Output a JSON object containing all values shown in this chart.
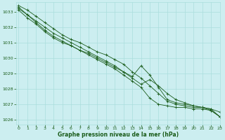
{
  "title": "Graphe pression niveau de la mer (hPa)",
  "bg_color": "#cceef0",
  "grid_color": "#aadddd",
  "line_color": "#1a5c1a",
  "xlim": [
    -0.3,
    23
  ],
  "ylim": [
    1025.7,
    1033.6
  ],
  "yticks": [
    1026,
    1027,
    1028,
    1029,
    1030,
    1031,
    1032,
    1033
  ],
  "xticks": [
    0,
    1,
    2,
    3,
    4,
    5,
    6,
    7,
    8,
    9,
    10,
    11,
    12,
    13,
    14,
    15,
    16,
    17,
    18,
    19,
    20,
    21,
    22,
    23
  ],
  "series": [
    [
      1033.4,
      1033.1,
      1032.7,
      1032.3,
      1031.9,
      1031.5,
      1031.2,
      1031.0,
      1030.7,
      1030.4,
      1030.2,
      1029.9,
      1029.6,
      1029.1,
      1028.7,
      1028.2,
      1027.7,
      1027.2,
      1027.0,
      1026.9,
      1026.8,
      1026.8,
      1026.7,
      1026.2
    ],
    [
      1033.3,
      1032.8,
      1032.4,
      1032.0,
      1031.6,
      1031.3,
      1031.0,
      1030.7,
      1030.4,
      1030.1,
      1029.8,
      1029.5,
      1029.1,
      1028.7,
      1028.3,
      1028.6,
      1028.2,
      1027.7,
      1027.3,
      1027.1,
      1026.9,
      1026.8,
      1026.6,
      1026.2
    ],
    [
      1033.2,
      1032.8,
      1032.3,
      1031.8,
      1031.4,
      1031.1,
      1030.8,
      1030.5,
      1030.2,
      1029.9,
      1029.6,
      1029.3,
      1028.9,
      1028.5,
      1028.1,
      1027.4,
      1027.0,
      1026.9,
      1026.8,
      1026.8,
      1026.7,
      1026.7,
      1026.6,
      1026.2
    ],
    [
      1033.1,
      1032.6,
      1032.2,
      1031.7,
      1031.3,
      1031.0,
      1030.8,
      1030.5,
      1030.3,
      1030.0,
      1029.7,
      1029.4,
      1029.1,
      1028.8,
      1029.5,
      1028.9,
      1028.1,
      1027.3,
      1027.1,
      1027.0,
      1026.9,
      1026.8,
      1026.7,
      1026.5
    ]
  ]
}
